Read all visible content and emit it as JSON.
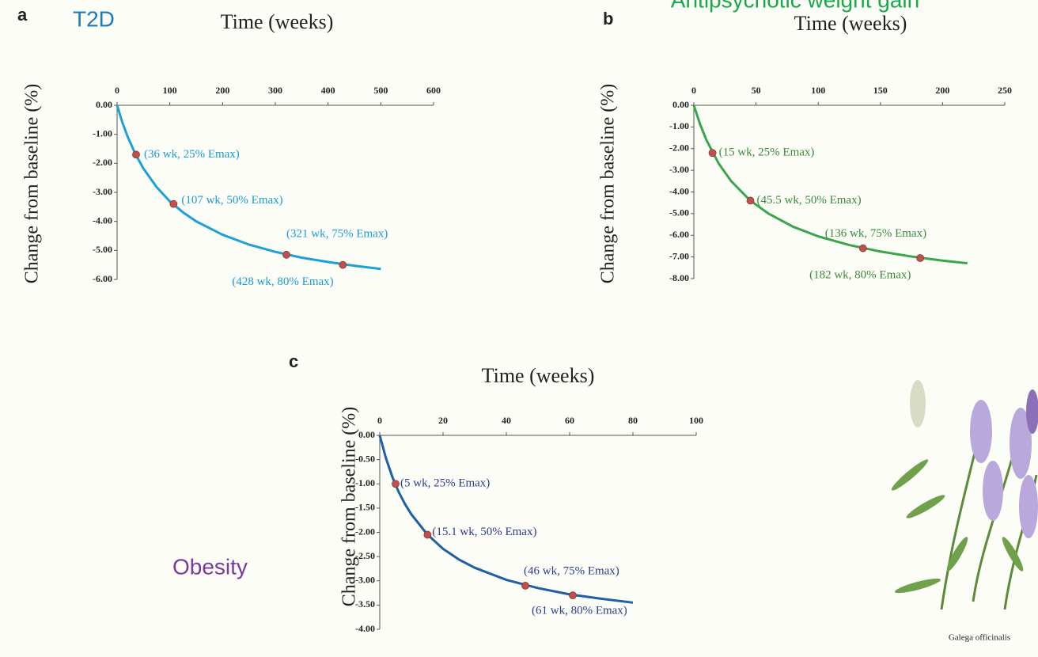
{
  "chart_data": [
    {
      "type": "line",
      "panel": "a",
      "title": "T2D",
      "x_label": "Time (weeks)",
      "y_label": "Change from baseline (%)",
      "xlim": [
        0,
        600
      ],
      "xticks": [
        0,
        100,
        200,
        300,
        400,
        500,
        600
      ],
      "ylim": [
        -6,
        0
      ],
      "yticks": [
        {
          "value": 0,
          "label": "0.00"
        },
        {
          "value": -1,
          "label": "-1.00"
        },
        {
          "value": -2,
          "label": "-2.00"
        },
        {
          "value": -3,
          "label": "-3.00"
        },
        {
          "value": -4,
          "label": "-4.00"
        },
        {
          "value": -5,
          "label": "-5.00"
        },
        {
          "value": -6,
          "label": "-6.00"
        }
      ],
      "series": [
        {
          "color": "#1ba1d8",
          "x": [
            0,
            10,
            20,
            35,
            50,
            75,
            100,
            125,
            150,
            200,
            250,
            300,
            350,
            400,
            450,
            500
          ],
          "values": [
            0,
            -0.59,
            -1.08,
            -1.69,
            -2.18,
            -2.82,
            -3.31,
            -3.69,
            -4.0,
            -4.46,
            -4.8,
            -5.05,
            -5.25,
            -5.4,
            -5.53,
            -5.64
          ]
        }
      ],
      "points": {
        "color": "#c0504d",
        "label_color": "#1a9bd7",
        "x": [
          36,
          107,
          321,
          428
        ],
        "values": [
          -1.7,
          -3.4,
          -5.15,
          -5.5
        ],
        "labels": [
          "(36 wk, 25% Emax)",
          "(107 wk, 50% Emax)",
          "(321 wk, 75% Emax)",
          "(428 wk, 80% Emax)"
        ]
      }
    },
    {
      "type": "line",
      "panel": "b",
      "title": "Antipsychotic weight gain",
      "x_label": "Time (weeks)",
      "y_label": "Change from baseline (%)",
      "xlim": [
        0,
        250
      ],
      "xticks": [
        0,
        50,
        100,
        150,
        200,
        250
      ],
      "ylim": [
        -8,
        0
      ],
      "yticks": [
        {
          "value": 0,
          "label": "0.00"
        },
        {
          "value": -1,
          "label": "-1.00"
        },
        {
          "value": -2,
          "label": "-2.00"
        },
        {
          "value": -3,
          "label": "-3.00"
        },
        {
          "value": -4,
          "label": "-4.00"
        },
        {
          "value": -5,
          "label": "-5.00"
        },
        {
          "value": -6,
          "label": "-6.00"
        },
        {
          "value": -7,
          "label": "-7.00"
        },
        {
          "value": -8,
          "label": "-8.00"
        }
      ],
      "series": [
        {
          "color": "#3aa54a",
          "x": [
            0,
            5,
            10,
            20,
            30,
            45,
            60,
            80,
            100,
            125,
            150,
            175,
            200,
            220
          ],
          "values": [
            0,
            -0.87,
            -1.59,
            -2.69,
            -3.5,
            -4.38,
            -5.0,
            -5.61,
            -6.05,
            -6.45,
            -6.75,
            -6.98,
            -7.17,
            -7.29
          ]
        }
      ],
      "points": {
        "color": "#c0504d",
        "label_color": "#3a8a3a",
        "x": [
          15,
          45.5,
          136,
          182
        ],
        "values": [
          -2.2,
          -4.4,
          -6.6,
          -7.05
        ],
        "labels": [
          "(15 wk, 25% Emax)",
          "(45.5 wk, 50% Emax)",
          "(136 wk, 75% Emax)",
          "(182 wk, 80% Emax)"
        ]
      }
    },
    {
      "type": "line",
      "panel": "c",
      "title": "Obesity",
      "x_label": "Time (weeks)",
      "y_label": "Change from baseline (%)",
      "xlim": [
        0,
        100
      ],
      "xticks": [
        0,
        20,
        40,
        60,
        80,
        100
      ],
      "ylim": [
        -4,
        0
      ],
      "yticks": [
        {
          "value": 0,
          "label": "0.00"
        },
        {
          "value": -0.5,
          "label": "-0.50"
        },
        {
          "value": -1,
          "label": "-1.00"
        },
        {
          "value": -1.5,
          "label": "-1.50"
        },
        {
          "value": -2,
          "label": "-2.00"
        },
        {
          "value": -2.5,
          "label": "-2.50"
        },
        {
          "value": -3,
          "label": "-3.00"
        },
        {
          "value": -3.5,
          "label": "-3.50"
        },
        {
          "value": -4,
          "label": "-4.00"
        }
      ],
      "series": [
        {
          "color": "#1f5fa8",
          "x": [
            0,
            2,
            4,
            6,
            8,
            10,
            15,
            20,
            25,
            30,
            40,
            50,
            60,
            70,
            80
          ],
          "values": [
            0,
            -0.48,
            -0.86,
            -1.17,
            -1.42,
            -1.63,
            -2.04,
            -2.34,
            -2.56,
            -2.73,
            -2.98,
            -3.15,
            -3.28,
            -3.37,
            -3.45
          ]
        }
      ],
      "points": {
        "color": "#c0504d",
        "label_color": "#2e3a8f",
        "x": [
          5,
          15.1,
          46,
          61
        ],
        "values": [
          -1.0,
          -2.05,
          -3.1,
          -3.3
        ],
        "labels": [
          "(5 wk, 25% Emax)",
          "(15.1 wk, 50% Emax)",
          "(46 wk, 75% Emax)",
          "(61 wk, 80% Emax)"
        ]
      }
    }
  ],
  "illustration": {
    "caption": "Galega officinalis"
  }
}
